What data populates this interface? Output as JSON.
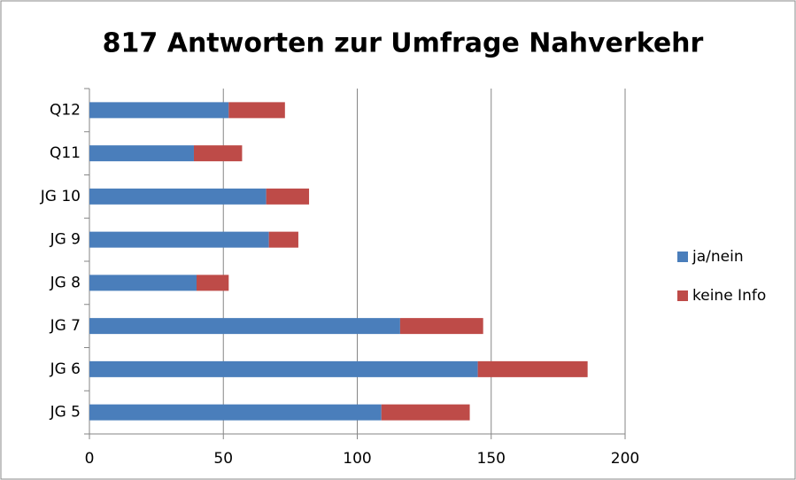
{
  "chart_data": {
    "type": "bar",
    "orientation": "horizontal",
    "stacked": true,
    "title": "817 Antworten zur Umfrage Nahverkehr",
    "categories": [
      "Q12",
      "Q11",
      "JG 10",
      "JG 9",
      "JG 8",
      "JG 7",
      "JG 6",
      "JG 5"
    ],
    "series": [
      {
        "name": "ja/nein",
        "color": "#4a7ebb",
        "values": [
          52,
          39,
          66,
          67,
          40,
          116,
          145,
          109
        ]
      },
      {
        "name": "keine Info",
        "color": "#be4b48",
        "values": [
          21,
          18,
          16,
          11,
          12,
          31,
          41,
          33
        ]
      }
    ],
    "xlim": [
      0,
      200
    ],
    "xticks": [
      0,
      50,
      100,
      150,
      200
    ],
    "grid": true,
    "legend": "right"
  }
}
